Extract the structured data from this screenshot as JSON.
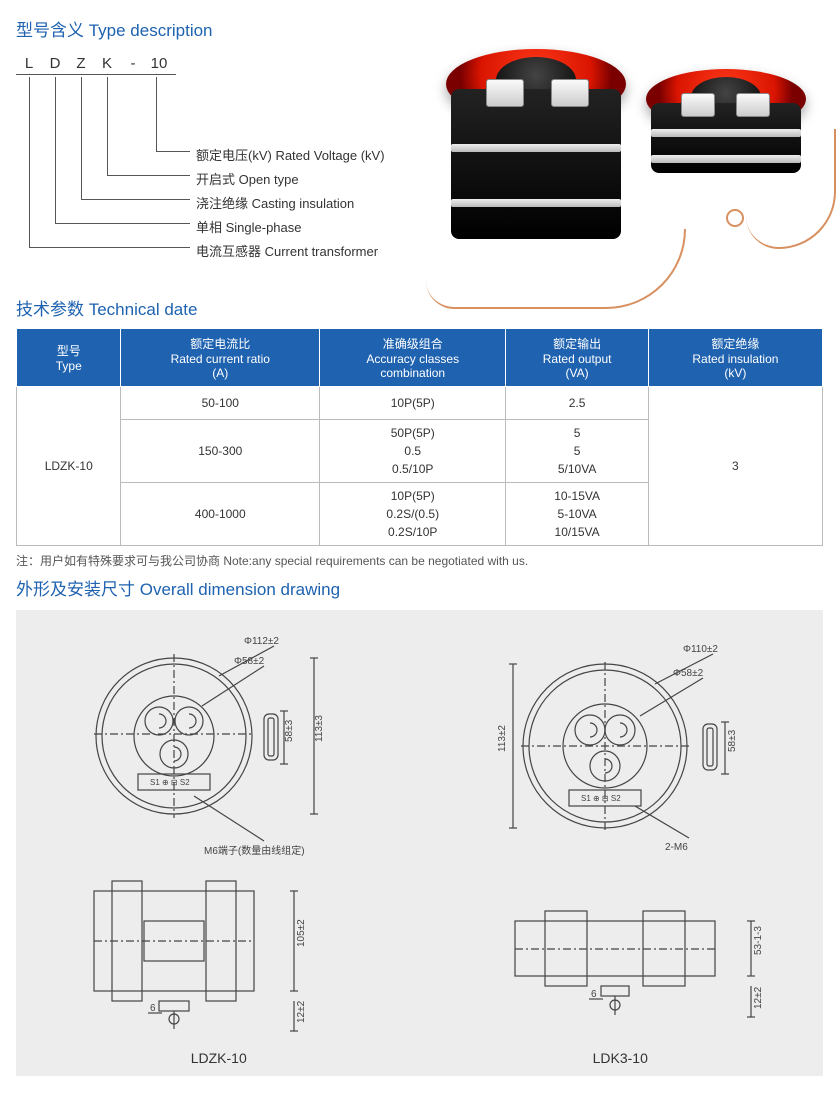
{
  "sections": {
    "type_desc": "型号含义 Type description",
    "tech": "技术参数 Technical date",
    "drw": "外形及安装尺寸  Overall dimension drawing"
  },
  "code": {
    "letters": [
      "L",
      "D",
      "Z",
      "K",
      "-",
      "10"
    ],
    "legend": [
      {
        "label": "额定电压(kV) Rated Voltage (kV)"
      },
      {
        "label": "开启式 Open type"
      },
      {
        "label": "浇注绝缘 Casting insulation"
      },
      {
        "label": "单相 Single-phase"
      },
      {
        "label": "电流互感器 Current transformer"
      }
    ]
  },
  "tech_table": {
    "headers": [
      {
        "cn": "型号",
        "en": "Type"
      },
      {
        "cn": "额定电流比",
        "en": "Rated current ratio",
        "unit": "(A)"
      },
      {
        "cn": "准确级组合",
        "en": "Accuracy classes",
        "unit": "combination"
      },
      {
        "cn": "额定输出",
        "en": "Rated output",
        "unit": "(VA)"
      },
      {
        "cn": "额定绝缘",
        "en": "Rated insulation",
        "unit": "(kV)"
      }
    ],
    "type": "LDZK-10",
    "rows": [
      {
        "ratio": "50-100",
        "acc": "10P(5P)",
        "out": "2.5"
      },
      {
        "ratio": "150-300",
        "acc": "50P(5P)\n0.5\n0.5/10P",
        "out": "5\n5\n5/10VA"
      },
      {
        "ratio": "400-1000",
        "acc": "10P(5P)\n0.2S/(0.5)\n0.2S/10P",
        "out": "10-15VA\n5-10VA\n10/15VA"
      }
    ],
    "insul": "3",
    "note": "注：用户如有特殊要求可与我公司协商 Note:any special requirements can be negotiated with us."
  },
  "drawings": {
    "left": {
      "label": "LDZK-10",
      "dims": {
        "d_out": "Φ112±2",
        "d_in": "Φ58±2",
        "h_top": "58±3",
        "h_full": "113±3",
        "m_note": "M6端子(数量由线组定)",
        "s_left": "S1",
        "s_right": "S2",
        "side_h": "105±2",
        "side_b": "12±2",
        "foot": "6"
      }
    },
    "right": {
      "label": "LDK3-10",
      "dims": {
        "d_out": "Φ110±2",
        "d_in": "Φ58±2",
        "h_top": "58±3",
        "h_full": "113±2",
        "m_note": "2-M6",
        "s_left": "S1",
        "s_right": "S2",
        "side_h": "53₋₁⁻³",
        "side_b": "12±2",
        "foot": "6"
      }
    }
  },
  "style": {
    "accent": "#1e62b0",
    "ct_red": "#e01a00",
    "ct_black": "#111",
    "band": "#d8d8d8",
    "wire": "#d89060",
    "drw_bg": "#ededed",
    "line": "#555",
    "font": "Arial"
  }
}
